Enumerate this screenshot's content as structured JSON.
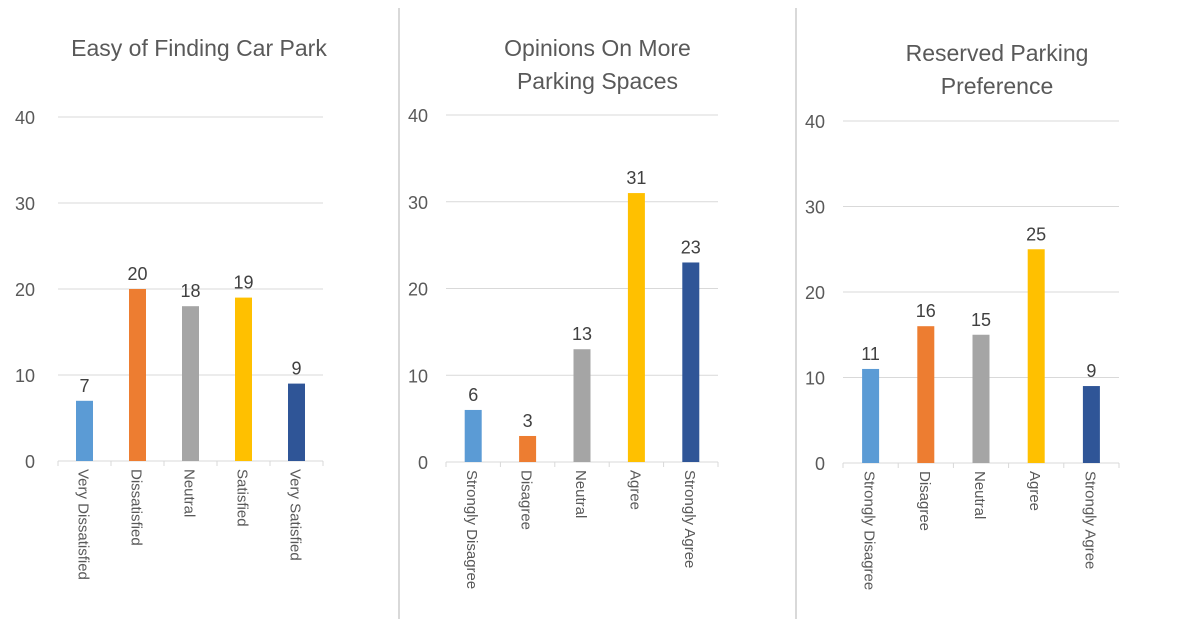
{
  "colors": [
    "#5b9bd5",
    "#ed7d31",
    "#a5a5a5",
    "#ffc000",
    "#2f5597"
  ],
  "chart_data": [
    {
      "type": "bar",
      "title": "Easy of Finding Car Park",
      "categories": [
        "Very Dissatisfied",
        "Dissatisfied",
        "Neutral",
        "Satisfied",
        "Very Satisfied"
      ],
      "values": [
        7,
        20,
        18,
        19,
        9
      ],
      "ylim": [
        0,
        40
      ],
      "yticks": [
        0,
        10,
        20,
        30,
        40
      ],
      "grid": true,
      "data_labels": true
    },
    {
      "type": "bar",
      "title": "Opinions On More Parking Spaces",
      "categories": [
        "Strongly Disagree",
        "Disagree",
        "Neutral",
        "Agree",
        "Strongly Agree"
      ],
      "values": [
        6,
        3,
        13,
        31,
        23
      ],
      "ylim": [
        0,
        40
      ],
      "yticks": [
        0,
        10,
        20,
        30,
        40
      ],
      "grid": true,
      "data_labels": true
    },
    {
      "type": "bar",
      "title": "Reserved Parking Preference",
      "categories": [
        "Strongly Disagree",
        "Disagree",
        "Neutral",
        "Agree",
        "Strongly Agree"
      ],
      "values": [
        11,
        16,
        15,
        25,
        9
      ],
      "ylim": [
        0,
        40
      ],
      "yticks": [
        0,
        10,
        20,
        30,
        40
      ],
      "grid": true,
      "data_labels": true
    }
  ]
}
